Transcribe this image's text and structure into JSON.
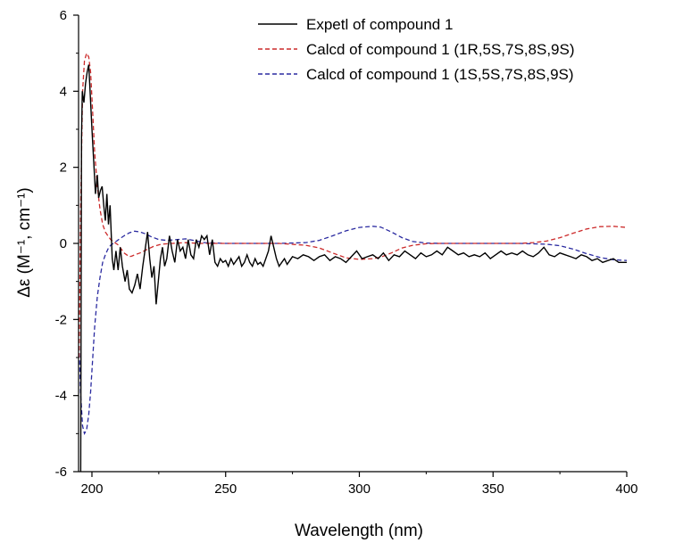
{
  "chart_data": {
    "type": "line",
    "xlabel": "Wavelength (nm)",
    "ylabel": "Δε (M⁻¹, cm⁻¹)",
    "xlim": [
      195,
      400
    ],
    "ylim": [
      -6,
      6
    ],
    "x_ticks": [
      200,
      250,
      300,
      350,
      400
    ],
    "y_ticks": [
      -6,
      -4,
      -2,
      0,
      2,
      4,
      6
    ],
    "grid": false,
    "legend_position": "top-right",
    "series": [
      {
        "name": "Expetl of compound 1",
        "color": "#000000",
        "dash": "solid",
        "points": [
          [
            195.8,
            -6
          ],
          [
            196.1,
            2.8
          ],
          [
            196.4,
            4.0
          ],
          [
            197,
            3.7
          ],
          [
            197.6,
            4.2
          ],
          [
            198.2,
            4.5
          ],
          [
            198.8,
            4.7
          ],
          [
            199.3,
            4.0
          ],
          [
            200,
            3.0
          ],
          [
            200.7,
            2.1
          ],
          [
            201.3,
            1.3
          ],
          [
            202,
            1.8
          ],
          [
            202.5,
            1.2
          ],
          [
            203.2,
            1.4
          ],
          [
            203.8,
            1.5
          ],
          [
            204.4,
            1.0
          ],
          [
            205,
            0.6
          ],
          [
            205.6,
            1.3
          ],
          [
            206.2,
            0.5
          ],
          [
            206.8,
            1.0
          ],
          [
            207.6,
            -0.4
          ],
          [
            208.2,
            -0.7
          ],
          [
            209,
            -0.2
          ],
          [
            209.8,
            -0.7
          ],
          [
            210.6,
            -0.1
          ],
          [
            211.4,
            -0.6
          ],
          [
            212.4,
            -1.0
          ],
          [
            213.2,
            -0.7
          ],
          [
            214,
            -1.2
          ],
          [
            215,
            -1.3
          ],
          [
            216,
            -1.1
          ],
          [
            217,
            -0.8
          ],
          [
            218,
            -1.2
          ],
          [
            219,
            -0.6
          ],
          [
            220,
            -0.1
          ],
          [
            220.8,
            0.3
          ],
          [
            221.6,
            -0.4
          ],
          [
            222.4,
            -0.9
          ],
          [
            223.2,
            -0.6
          ],
          [
            224,
            -1.6
          ],
          [
            224.8,
            -1.0
          ],
          [
            225.6,
            -0.4
          ],
          [
            226.4,
            -0.1
          ],
          [
            227.2,
            -0.6
          ],
          [
            228,
            -0.4
          ],
          [
            229,
            0.2
          ],
          [
            230,
            -0.2
          ],
          [
            231,
            -0.5
          ],
          [
            232,
            0.1
          ],
          [
            233,
            -0.2
          ],
          [
            234,
            -0.1
          ],
          [
            235,
            -0.4
          ],
          [
            236,
            0.1
          ],
          [
            237,
            -0.3
          ],
          [
            238,
            -0.4
          ],
          [
            239,
            0.1
          ],
          [
            240,
            -0.1
          ],
          [
            241,
            0.2
          ],
          [
            242,
            0.1
          ],
          [
            243,
            0.2
          ],
          [
            244,
            -0.3
          ],
          [
            245,
            0.1
          ],
          [
            246,
            -0.5
          ],
          [
            247,
            -0.6
          ],
          [
            248,
            -0.4
          ],
          [
            249,
            -0.5
          ],
          [
            250,
            -0.45
          ],
          [
            251,
            -0.6
          ],
          [
            252,
            -0.4
          ],
          [
            253,
            -0.55
          ],
          [
            254,
            -0.45
          ],
          [
            255,
            -0.35
          ],
          [
            256,
            -0.6
          ],
          [
            257,
            -0.5
          ],
          [
            258,
            -0.3
          ],
          [
            259,
            -0.5
          ],
          [
            260,
            -0.6
          ],
          [
            261,
            -0.4
          ],
          [
            262,
            -0.55
          ],
          [
            263,
            -0.5
          ],
          [
            264,
            -0.6
          ],
          [
            265,
            -0.4
          ],
          [
            266,
            -0.2
          ],
          [
            267,
            0.2
          ],
          [
            268,
            -0.1
          ],
          [
            269,
            -0.4
          ],
          [
            270,
            -0.6
          ],
          [
            271,
            -0.5
          ],
          [
            272,
            -0.4
          ],
          [
            273,
            -0.55
          ],
          [
            274,
            -0.45
          ],
          [
            275,
            -0.35
          ],
          [
            277,
            -0.4
          ],
          [
            279,
            -0.3
          ],
          [
            281,
            -0.35
          ],
          [
            283,
            -0.45
          ],
          [
            285,
            -0.35
          ],
          [
            287,
            -0.3
          ],
          [
            289,
            -0.45
          ],
          [
            291,
            -0.35
          ],
          [
            293,
            -0.4
          ],
          [
            295,
            -0.5
          ],
          [
            297,
            -0.35
          ],
          [
            299,
            -0.2
          ],
          [
            301,
            -0.4
          ],
          [
            303,
            -0.35
          ],
          [
            305,
            -0.3
          ],
          [
            307,
            -0.4
          ],
          [
            309,
            -0.25
          ],
          [
            311,
            -0.45
          ],
          [
            313,
            -0.3
          ],
          [
            315,
            -0.35
          ],
          [
            317,
            -0.2
          ],
          [
            319,
            -0.3
          ],
          [
            321,
            -0.4
          ],
          [
            323,
            -0.25
          ],
          [
            325,
            -0.35
          ],
          [
            327,
            -0.3
          ],
          [
            329,
            -0.2
          ],
          [
            331,
            -0.3
          ],
          [
            333,
            -0.1
          ],
          [
            335,
            -0.2
          ],
          [
            337,
            -0.3
          ],
          [
            339,
            -0.25
          ],
          [
            341,
            -0.35
          ],
          [
            343,
            -0.3
          ],
          [
            345,
            -0.35
          ],
          [
            347,
            -0.25
          ],
          [
            349,
            -0.4
          ],
          [
            351,
            -0.3
          ],
          [
            353,
            -0.2
          ],
          [
            355,
            -0.3
          ],
          [
            357,
            -0.25
          ],
          [
            359,
            -0.3
          ],
          [
            361,
            -0.2
          ],
          [
            363,
            -0.3
          ],
          [
            365,
            -0.35
          ],
          [
            367,
            -0.25
          ],
          [
            369,
            -0.1
          ],
          [
            371,
            -0.3
          ],
          [
            373,
            -0.35
          ],
          [
            375,
            -0.25
          ],
          [
            377,
            -0.3
          ],
          [
            379,
            -0.35
          ],
          [
            381,
            -0.4
          ],
          [
            383,
            -0.3
          ],
          [
            385,
            -0.35
          ],
          [
            387,
            -0.45
          ],
          [
            389,
            -0.4
          ],
          [
            391,
            -0.5
          ],
          [
            393,
            -0.45
          ],
          [
            395,
            -0.4
          ],
          [
            397,
            -0.5
          ],
          [
            400,
            -0.5
          ]
        ]
      },
      {
        "name": "Calcd of compound 1 (1R,5S,7S,8S,9S)",
        "color": "#cc2a2a",
        "dash": "dashed",
        "points": [
          [
            195.2,
            -3.0
          ],
          [
            195.8,
            1.0
          ],
          [
            196.5,
            4.0
          ],
          [
            197.2,
            4.8
          ],
          [
            198,
            5.0
          ],
          [
            198.8,
            4.9
          ],
          [
            199.5,
            4.5
          ],
          [
            200.3,
            3.4
          ],
          [
            201,
            2.4
          ],
          [
            202,
            1.5
          ],
          [
            203,
            0.9
          ],
          [
            204,
            0.5
          ],
          [
            205,
            0.3
          ],
          [
            206,
            0.2
          ],
          [
            207,
            0.1
          ],
          [
            208,
            0.05
          ],
          [
            209,
            0.0
          ],
          [
            210,
            -0.05
          ],
          [
            211,
            -0.15
          ],
          [
            212,
            -0.25
          ],
          [
            213,
            -0.3
          ],
          [
            214,
            -0.35
          ],
          [
            215,
            -0.33
          ],
          [
            216,
            -0.3
          ],
          [
            218,
            -0.25
          ],
          [
            220,
            -0.18
          ],
          [
            223,
            -0.08
          ],
          [
            226,
            -0.02
          ],
          [
            230,
            0.0
          ],
          [
            235,
            0.02
          ],
          [
            240,
            0.0
          ],
          [
            250,
            0.0
          ],
          [
            260,
            0.0
          ],
          [
            270,
            0.0
          ],
          [
            280,
            -0.05
          ],
          [
            285,
            -0.12
          ],
          [
            290,
            -0.25
          ],
          [
            295,
            -0.38
          ],
          [
            300,
            -0.42
          ],
          [
            305,
            -0.4
          ],
          [
            308,
            -0.36
          ],
          [
            312,
            -0.25
          ],
          [
            316,
            -0.12
          ],
          [
            320,
            -0.05
          ],
          [
            325,
            -0.01
          ],
          [
            330,
            0.0
          ],
          [
            340,
            0.0
          ],
          [
            350,
            0.0
          ],
          [
            360,
            0.0
          ],
          [
            365,
            0.02
          ],
          [
            370,
            0.06
          ],
          [
            375,
            0.15
          ],
          [
            380,
            0.27
          ],
          [
            385,
            0.38
          ],
          [
            390,
            0.44
          ],
          [
            395,
            0.45
          ],
          [
            400,
            0.42
          ]
        ]
      },
      {
        "name": "Calcd of compound 1 (1S,5S,7S,8S,9S)",
        "color": "#2a2aa0",
        "dash": "dashed",
        "points": [
          [
            195.2,
            -2.7
          ],
          [
            195.8,
            -4.0
          ],
          [
            196.5,
            -4.8
          ],
          [
            197.2,
            -5.0
          ],
          [
            198,
            -4.9
          ],
          [
            198.8,
            -4.5
          ],
          [
            199.5,
            -3.9
          ],
          [
            200.3,
            -3.0
          ],
          [
            201,
            -2.2
          ],
          [
            202,
            -1.4
          ],
          [
            203,
            -0.9
          ],
          [
            204,
            -0.5
          ],
          [
            205,
            -0.3
          ],
          [
            206,
            -0.15
          ],
          [
            207,
            -0.05
          ],
          [
            208,
            0.0
          ],
          [
            209,
            0.05
          ],
          [
            210,
            0.1
          ],
          [
            212,
            0.2
          ],
          [
            214,
            0.28
          ],
          [
            216,
            0.32
          ],
          [
            218,
            0.3
          ],
          [
            220,
            0.25
          ],
          [
            222,
            0.18
          ],
          [
            225,
            0.1
          ],
          [
            228,
            0.08
          ],
          [
            232,
            0.1
          ],
          [
            235,
            0.12
          ],
          [
            238,
            0.08
          ],
          [
            242,
            0.02
          ],
          [
            250,
            0.0
          ],
          [
            260,
            0.0
          ],
          [
            270,
            0.0
          ],
          [
            280,
            0.02
          ],
          [
            285,
            0.08
          ],
          [
            290,
            0.2
          ],
          [
            295,
            0.33
          ],
          [
            300,
            0.42
          ],
          [
            305,
            0.45
          ],
          [
            308,
            0.43
          ],
          [
            312,
            0.3
          ],
          [
            316,
            0.15
          ],
          [
            320,
            0.05
          ],
          [
            325,
            0.01
          ],
          [
            330,
            0.0
          ],
          [
            340,
            0.0
          ],
          [
            350,
            0.0
          ],
          [
            360,
            0.0
          ],
          [
            370,
            -0.02
          ],
          [
            375,
            -0.06
          ],
          [
            380,
            -0.15
          ],
          [
            385,
            -0.27
          ],
          [
            390,
            -0.37
          ],
          [
            395,
            -0.43
          ],
          [
            400,
            -0.45
          ]
        ]
      }
    ]
  }
}
